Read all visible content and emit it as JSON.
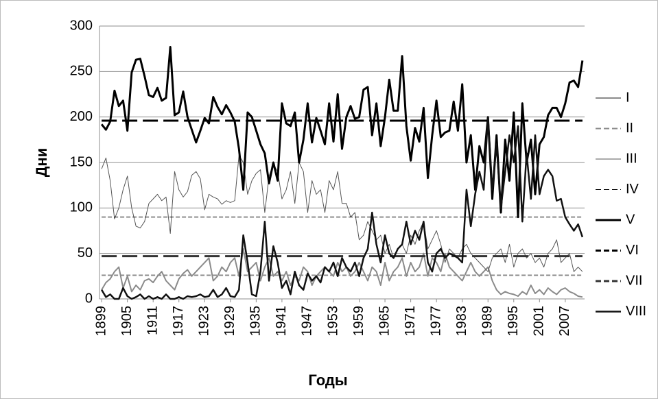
{
  "chart_data": {
    "type": "line",
    "x_label": "Годы",
    "y_label": "Дни",
    "categories": [
      "1899",
      null,
      null,
      null,
      null,
      null,
      "1905",
      null,
      null,
      null,
      null,
      null,
      "1911",
      null,
      null,
      null,
      null,
      null,
      "1917",
      null,
      null,
      null,
      null,
      null,
      "1923",
      null,
      null,
      null,
      null,
      null,
      "1929",
      null,
      null,
      null,
      null,
      null,
      "1935",
      null,
      null,
      null,
      null,
      null,
      "1941",
      null,
      null,
      null,
      null,
      null,
      "1947",
      null,
      null,
      null,
      null,
      null,
      "1953",
      null,
      null,
      null,
      null,
      null,
      "1959",
      null,
      null,
      null,
      null,
      null,
      "1965",
      null,
      null,
      null,
      null,
      null,
      "1971",
      null,
      null,
      null,
      null,
      null,
      "1977",
      null,
      null,
      null,
      null,
      null,
      "1983",
      null,
      null,
      null,
      null,
      null,
      "1989",
      null,
      null,
      null,
      null,
      null,
      "1995",
      null,
      null,
      null,
      null,
      null,
      "2001",
      null,
      null,
      null,
      null,
      null,
      "2007",
      null,
      null,
      null,
      null
    ],
    "ylim": [
      0,
      300
    ],
    "yticks": [
      0,
      50,
      100,
      150,
      200,
      250,
      300
    ],
    "grid": true,
    "legend": "right",
    "series": [
      {
        "name": "I",
        "color": "#8a8a8a",
        "width": 2,
        "dash": false,
        "values": [
          10,
          18,
          22,
          30,
          35,
          12,
          25,
          8,
          15,
          10,
          20,
          22,
          18,
          25,
          30,
          20,
          15,
          10,
          22,
          28,
          32,
          25,
          30,
          35,
          40,
          45,
          20,
          25,
          35,
          30,
          40,
          45,
          25,
          55,
          30,
          35,
          40,
          20,
          35,
          45,
          25,
          30,
          20,
          30,
          15,
          25,
          20,
          35,
          30,
          15,
          25,
          30,
          35,
          30,
          25,
          40,
          30,
          35,
          25,
          30,
          40,
          30,
          20,
          35,
          30,
          15,
          40,
          20,
          30,
          35,
          45,
          25,
          40,
          30,
          35,
          50,
          25,
          45,
          40,
          30,
          50,
          35,
          30,
          25,
          20,
          30,
          40,
          30,
          25,
          30,
          35,
          20,
          10,
          5,
          8,
          6,
          5,
          3,
          8,
          5,
          15,
          6,
          10,
          5,
          12,
          8,
          5,
          10,
          12,
          8,
          6,
          3,
          2
        ]
      },
      {
        "name": "II",
        "color": "#8a8a8a",
        "width": 2,
        "dash": true,
        "values": [
          26,
          26,
          26,
          26,
          26,
          26,
          26,
          26,
          26,
          26,
          26,
          26,
          26,
          26,
          26,
          26,
          26,
          26,
          26,
          26,
          26,
          26,
          26,
          26,
          26,
          26,
          26,
          26,
          26,
          26,
          26,
          26,
          26,
          26,
          26,
          26,
          26,
          26,
          26,
          26,
          26,
          26,
          26,
          26,
          26,
          26,
          26,
          26,
          26,
          26,
          26,
          26,
          26,
          26,
          26,
          26,
          26,
          26,
          26,
          26,
          26,
          26,
          26,
          26,
          26,
          26,
          26,
          26,
          26,
          26,
          26,
          26,
          26,
          26,
          26,
          26,
          26,
          26,
          26,
          26,
          26,
          26,
          26,
          26,
          26,
          26,
          26,
          26,
          26,
          26,
          26,
          26,
          26,
          26,
          26,
          26,
          26,
          26,
          26,
          26,
          26,
          26,
          26,
          26,
          26,
          26,
          26,
          26,
          26,
          26,
          26,
          26,
          26
        ]
      },
      {
        "name": "III",
        "color": "#555555",
        "width": 1,
        "dash": false,
        "values": [
          143,
          155,
          130,
          88,
          100,
          120,
          135,
          100,
          80,
          78,
          85,
          105,
          110,
          115,
          108,
          112,
          72,
          140,
          120,
          112,
          118,
          136,
          140,
          132,
          98,
          115,
          112,
          110,
          104,
          108,
          106,
          108,
          158,
          150,
          115,
          130,
          138,
          142,
          95,
          135,
          148,
          140,
          110,
          120,
          140,
          105,
          150,
          140,
          95,
          130,
          115,
          120,
          95,
          130,
          120,
          140,
          105,
          105,
          90,
          95,
          65,
          70,
          85,
          75,
          65,
          70,
          50,
          60,
          45,
          55,
          60,
          50,
          70,
          60,
          75,
          85,
          55,
          65,
          75,
          60,
          40,
          55,
          50,
          45,
          55,
          60,
          50,
          45,
          40,
          35,
          30,
          45,
          50,
          55,
          40,
          60,
          35,
          50,
          55,
          45,
          50,
          40,
          45,
          35,
          50,
          55,
          65,
          40,
          45,
          50,
          30,
          35,
          30
        ]
      },
      {
        "name": "IV",
        "color": "#000000",
        "width": 1,
        "dash": true,
        "values": [
          90,
          90,
          90,
          90,
          90,
          90,
          90,
          90,
          90,
          90,
          90,
          90,
          90,
          90,
          90,
          90,
          90,
          90,
          90,
          90,
          90,
          90,
          90,
          90,
          90,
          90,
          90,
          90,
          90,
          90,
          90,
          90,
          90,
          90,
          90,
          90,
          90,
          90,
          90,
          90,
          90,
          90,
          90,
          90,
          90,
          90,
          90,
          90,
          90,
          90,
          90,
          90,
          90,
          90,
          90,
          90,
          90,
          90,
          90,
          90,
          90,
          90,
          90,
          90,
          90,
          90,
          90,
          90,
          90,
          90,
          90,
          90,
          90,
          90,
          90,
          90,
          90,
          90,
          90,
          90,
          90,
          90,
          90,
          90,
          90,
          90,
          90,
          90,
          90,
          90,
          90,
          90,
          90,
          90,
          90,
          90,
          90,
          90,
          90,
          90,
          90,
          90,
          90,
          90,
          90,
          90,
          90,
          90,
          90,
          90,
          90,
          90,
          90
        ]
      },
      {
        "name": "V",
        "color": "#000000",
        "width": 3,
        "dash": false,
        "values": [
          192,
          186,
          195,
          229,
          212,
          218,
          185,
          249,
          263,
          264,
          245,
          224,
          222,
          232,
          218,
          221,
          277,
          202,
          205,
          228,
          200,
          186,
          172,
          185,
          199,
          193,
          222,
          211,
          203,
          213,
          205,
          195,
          165,
          120,
          205,
          200,
          185,
          170,
          160,
          127,
          150,
          130,
          215,
          193,
          190,
          205,
          150,
          175,
          215,
          172,
          199,
          185,
          170,
          215,
          173,
          225,
          165,
          200,
          212,
          198,
          200,
          230,
          233,
          180,
          215,
          168,
          200,
          241,
          207,
          207,
          267,
          190,
          152,
          188,
          173,
          210,
          133,
          180,
          218,
          178,
          183,
          185,
          217,
          185,
          236,
          150,
          180,
          120,
          168,
          150,
          200,
          110,
          180,
          95,
          175,
          130,
          205,
          90,
          215,
          150,
          175,
          115,
          170,
          178,
          202,
          210,
          210,
          200,
          215,
          238,
          240,
          233,
          262
        ]
      },
      {
        "name": "VI",
        "color": "#000000",
        "width": 3,
        "dash": true,
        "values": [
          196,
          196,
          196,
          196,
          196,
          196,
          196,
          196,
          196,
          196,
          196,
          196,
          196,
          196,
          196,
          196,
          196,
          196,
          196,
          196,
          196,
          196,
          196,
          196,
          196,
          196,
          196,
          196,
          196,
          196,
          196,
          196,
          196,
          196,
          196,
          196,
          196,
          196,
          196,
          196,
          196,
          196,
          196,
          196,
          196,
          196,
          196,
          196,
          196,
          196,
          196,
          196,
          196,
          196,
          196,
          196,
          196,
          196,
          196,
          196,
          196,
          196,
          196,
          196,
          196,
          196,
          196,
          196,
          196,
          196,
          196,
          196,
          196,
          196,
          196,
          196,
          196,
          196,
          196,
          196,
          196,
          196,
          196,
          196,
          196,
          196,
          196,
          196,
          196,
          196,
          196,
          196,
          196,
          196,
          196,
          196,
          196,
          196,
          196,
          196,
          196,
          196,
          196,
          196,
          196,
          196,
          196,
          196,
          196,
          196,
          196,
          196,
          196
        ]
      },
      {
        "name": "VII",
        "color": "#333333",
        "width": 3,
        "dash": true,
        "values": [
          47,
          47,
          47,
          47,
          47,
          47,
          47,
          47,
          47,
          47,
          47,
          47,
          47,
          47,
          47,
          47,
          47,
          47,
          47,
          47,
          47,
          47,
          47,
          47,
          47,
          47,
          47,
          47,
          47,
          47,
          47,
          47,
          47,
          47,
          47,
          47,
          47,
          47,
          47,
          47,
          47,
          47,
          47,
          47,
          47,
          47,
          47,
          47,
          47,
          47,
          47,
          47,
          47,
          47,
          47,
          47,
          47,
          47,
          47,
          47,
          47,
          47,
          47,
          47,
          47,
          47,
          47,
          47,
          47,
          47,
          47,
          47,
          47,
          47,
          47,
          47,
          47,
          47,
          47,
          47,
          47,
          47,
          47,
          47,
          47,
          47,
          47,
          47,
          47,
          47,
          47,
          47,
          47,
          47,
          47,
          47,
          47,
          47,
          47,
          47,
          47,
          47,
          47,
          47,
          47,
          47,
          47,
          47,
          47,
          47,
          47,
          47,
          47
        ]
      },
      {
        "name": "VIII",
        "color": "#111111",
        "width": 2.5,
        "dash": false,
        "values": [
          10,
          2,
          5,
          0,
          0,
          12,
          3,
          0,
          2,
          5,
          0,
          3,
          0,
          2,
          0,
          5,
          0,
          0,
          2,
          0,
          3,
          2,
          3,
          5,
          2,
          3,
          10,
          2,
          5,
          12,
          3,
          2,
          10,
          70,
          40,
          5,
          3,
          30,
          85,
          20,
          58,
          40,
          12,
          20,
          5,
          30,
          15,
          10,
          28,
          20,
          25,
          18,
          35,
          30,
          40,
          25,
          45,
          35,
          30,
          40,
          25,
          45,
          55,
          95,
          60,
          40,
          70,
          50,
          45,
          55,
          60,
          85,
          60,
          75,
          65,
          85,
          40,
          30,
          50,
          55,
          45,
          50,
          48,
          45,
          40,
          120,
          80,
          115,
          140,
          120,
          200,
          120,
          170,
          100,
          140,
          180,
          150,
          190,
          85,
          160,
          110,
          180,
          115,
          135,
          142,
          135,
          108,
          110,
          90,
          82,
          75,
          82,
          68
        ]
      }
    ]
  }
}
